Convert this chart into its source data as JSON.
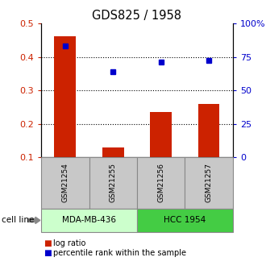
{
  "title": "GDS825 / 1958",
  "samples": [
    "GSM21254",
    "GSM21255",
    "GSM21256",
    "GSM21257"
  ],
  "log_ratio": [
    0.462,
    0.13,
    0.235,
    0.26
  ],
  "percentile_rank": [
    83.5,
    64.0,
    71.5,
    72.5
  ],
  "ylim_left": [
    0.1,
    0.5
  ],
  "ylim_right": [
    0,
    100
  ],
  "bar_color": "#cc2200",
  "dot_color": "#0000cc",
  "cell_lines": [
    {
      "label": "MDA-MB-436",
      "samples": [
        0,
        1
      ],
      "color": "#ccffcc"
    },
    {
      "label": "HCC 1954",
      "samples": [
        2,
        3
      ],
      "color": "#44cc44"
    }
  ],
  "sample_box_color": "#c8c8c8",
  "yticks_left": [
    0.1,
    0.2,
    0.3,
    0.4,
    0.5
  ],
  "yticks_right": [
    0,
    25,
    50,
    75,
    100
  ],
  "ytick_labels_right": [
    "0",
    "25",
    "50",
    "75",
    "100%"
  ],
  "grid_color": "#000000",
  "fig_width": 3.3,
  "fig_height": 3.45,
  "dpi": 100
}
